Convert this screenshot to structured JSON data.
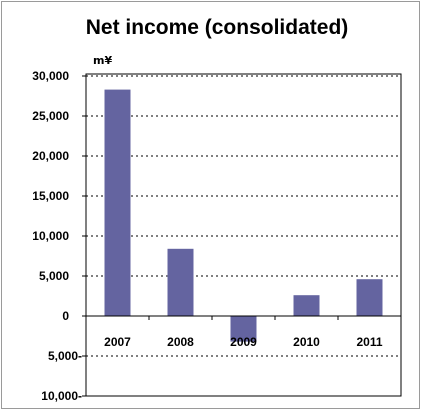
{
  "chart_data": {
    "type": "bar",
    "title": "Net income (consolidated)",
    "unit_label": "m¥",
    "categories": [
      "2007",
      "2008",
      "2009",
      "2010",
      "2011"
    ],
    "values": [
      28300,
      8400,
      -3200,
      2600,
      4600
    ],
    "ylim": [
      -10000,
      30000
    ],
    "yticks": [
      30000,
      25000,
      20000,
      15000,
      10000,
      5000,
      0,
      -5000,
      -10000
    ],
    "ytick_labels": [
      "30,000",
      "25,000",
      "20,000",
      "15,000",
      "10,000",
      "5,000",
      "0",
      "5,000-",
      "10,000-"
    ],
    "grid": true,
    "legend": "none",
    "bar_color": "#6464a0"
  }
}
